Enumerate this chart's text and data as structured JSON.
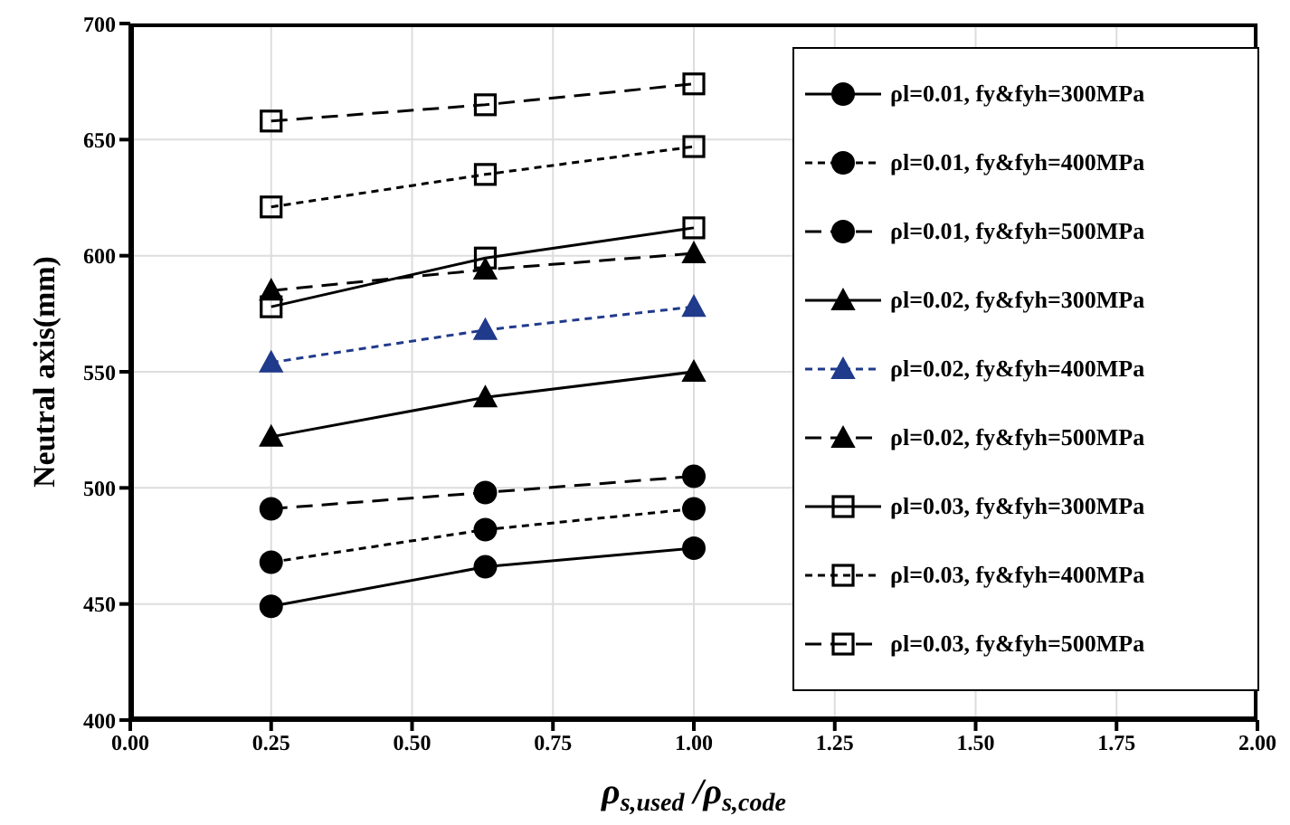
{
  "chart_data": {
    "type": "line",
    "xlabel": "ρ$_{s,used}$ /ρ$_{s,code}$",
    "ylabel": "Neutral axis(mm)",
    "x": [
      0.25,
      0.63,
      1.0
    ],
    "xlim": [
      0,
      2
    ],
    "xticks": [
      {
        "value": 0,
        "label": "0.00"
      },
      {
        "value": 0.25,
        "label": "0.25"
      },
      {
        "value": 0.5,
        "label": "0.50"
      },
      {
        "value": 0.75,
        "label": "0.75"
      },
      {
        "value": 1,
        "label": "1.00"
      },
      {
        "value": 1.25,
        "label": "1.25"
      },
      {
        "value": 1.5,
        "label": "1.50"
      },
      {
        "value": 1.75,
        "label": "1.75"
      },
      {
        "value": 2,
        "label": "2.00"
      }
    ],
    "ylim": [
      400,
      700
    ],
    "yticks": [
      400,
      450,
      500,
      550,
      600,
      650,
      700
    ],
    "grid": true,
    "legend": "top right",
    "series": [
      {
        "name": "ρl=0.01, fy&fyh=300MPa",
        "color": "#000000",
        "marker": "circle",
        "line_style": "solid",
        "values": [
          449,
          466,
          474
        ]
      },
      {
        "name": "ρl=0.01, fy&fyh=400MPa",
        "color": "#000000",
        "marker": "circle",
        "line_style": "dotted",
        "values": [
          468,
          482,
          491
        ]
      },
      {
        "name": "ρl=0.01, fy&fyh=500MPa",
        "color": "#000000",
        "marker": "circle",
        "line_style": "dashed",
        "values": [
          491,
          498,
          505
        ]
      },
      {
        "name": "ρl=0.02, fy&fyh=300MPa",
        "color": "#000000",
        "marker": "triangle",
        "line_style": "solid",
        "values": [
          522,
          539,
          550
        ]
      },
      {
        "name": "ρl=0.02, fy&fyh=400MPa",
        "color": "#203a8c",
        "marker": "triangle",
        "line_style": "dotted",
        "values": [
          554,
          568,
          578
        ]
      },
      {
        "name": "ρl=0.02, fy&fyh=500MPa",
        "color": "#000000",
        "marker": "triangle",
        "line_style": "dashed",
        "values": [
          585,
          594,
          601
        ]
      },
      {
        "name": "ρl=0.03, fy&fyh=300MPa",
        "color": "#000000",
        "marker": "square",
        "line_style": "solid",
        "values": [
          578,
          599,
          612
        ]
      },
      {
        "name": "ρl=0.03, fy&fyh=400MPa",
        "color": "#000000",
        "marker": "square",
        "line_style": "dotted",
        "values": [
          621,
          635,
          647
        ]
      },
      {
        "name": "ρl=0.03, fy&fyh=500MPa",
        "color": "#000000",
        "marker": "square",
        "line_style": "dashed",
        "values": [
          658,
          665,
          674
        ]
      }
    ]
  }
}
